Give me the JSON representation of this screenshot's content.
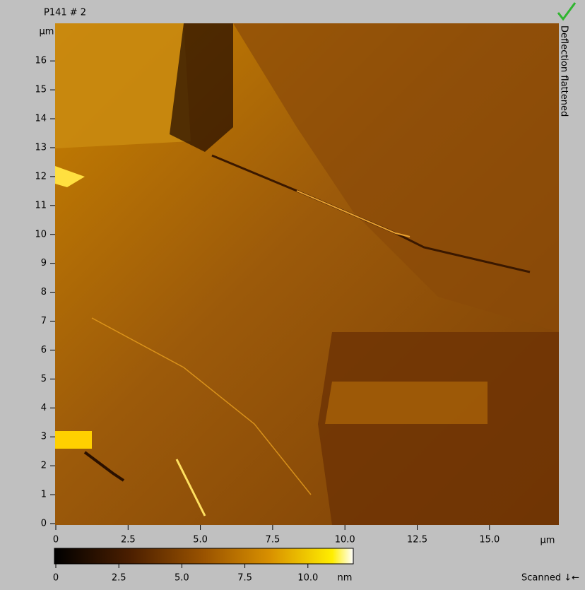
{
  "title": "P141 # 2",
  "side_label": "Deflection flattened",
  "status": "Scanned ↓←",
  "x_axis": {
    "unit": "μm",
    "lim": [
      0,
      17.4
    ],
    "ticks": [
      0,
      2.5,
      {
        "value": 5,
        "label": "5.0"
      },
      7.5,
      {
        "value": 10,
        "label": "10.0"
      },
      12.5,
      {
        "value": 15,
        "label": "15.0"
      }
    ]
  },
  "y_axis": {
    "unit": "μm",
    "lim": [
      0,
      17.3
    ],
    "ticks": [
      0,
      1,
      2,
      3,
      4,
      5,
      6,
      7,
      8,
      9,
      10,
      11,
      12,
      13,
      14,
      15,
      16
    ]
  },
  "colorbar": {
    "unit": "nm",
    "lim": [
      0,
      11.8
    ],
    "ticks": [
      0,
      2.5,
      {
        "value": 5,
        "label": "5.0"
      },
      7.5,
      {
        "value": 10,
        "label": "10.0"
      }
    ]
  }
}
